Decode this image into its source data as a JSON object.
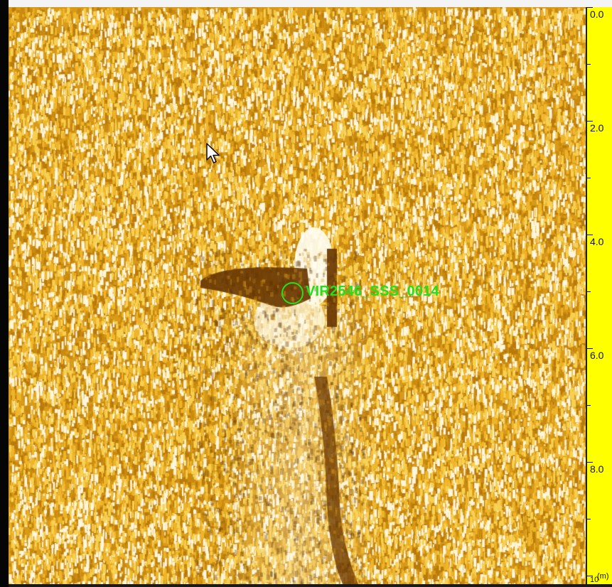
{
  "sonar": {
    "palette": {
      "dark": "#7a4605",
      "base": "#d99a14",
      "bright": "#f6c63a",
      "highlight": "#fffbe8"
    }
  },
  "target": {
    "label": "VIR2546_SSS_0014",
    "marker_color": "#22e01a"
  },
  "range_scale": {
    "unit": "(m)",
    "background": "#ffff00",
    "labels": [
      "0.0",
      "2.0",
      "4.0",
      "6.0",
      "8.0",
      "10"
    ]
  },
  "cursor": {
    "icon": "mouse-pointer-icon"
  }
}
